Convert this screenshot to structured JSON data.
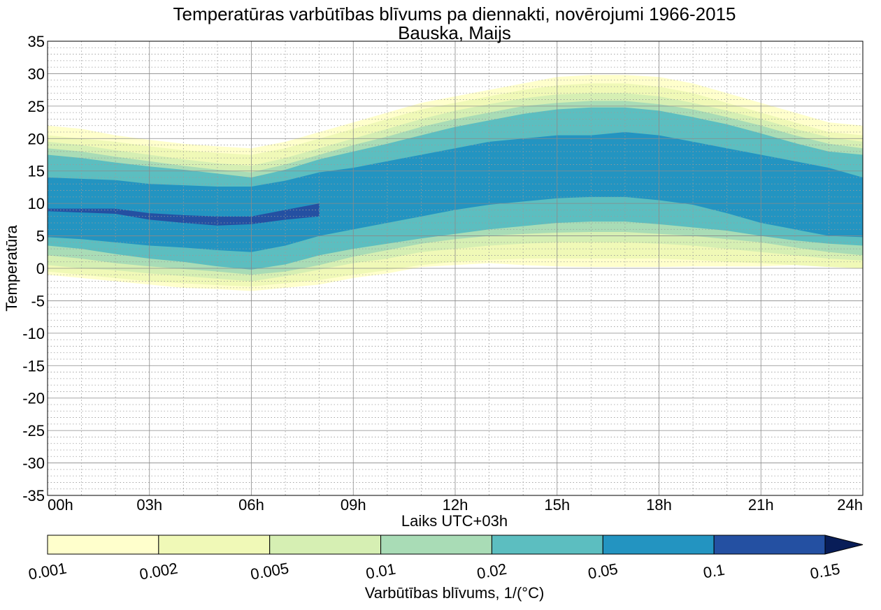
{
  "chart_data": {
    "type": "contourf",
    "title": "Temperatūras varbūtības blīvums pa diennakti, novērojumi 1966-2015",
    "subtitle": "Bauska, Maijs",
    "xlabel": "Laiks UTC+03h",
    "ylabel": "Temperatūra",
    "x_ticks": [
      "00h",
      "03h",
      "06h",
      "09h",
      "12h",
      "15h",
      "18h",
      "21h",
      "24h"
    ],
    "x_range": [
      0,
      24
    ],
    "y_ticks": [
      35,
      30,
      25,
      20,
      15,
      10,
      5,
      0,
      -5,
      -10,
      -15,
      -20,
      -25,
      -30,
      -35
    ],
    "y_range": [
      -35,
      35
    ],
    "grid": true,
    "colorbar": {
      "label": "Varbūtības blīvums, 1/(°C)",
      "levels": [
        "0.001",
        "0.002",
        "0.005",
        "0.01",
        "0.02",
        "0.05",
        "0.1",
        "0.15"
      ],
      "colors": [
        "#ffffcc",
        "#f0f9b7",
        "#d6efb3",
        "#a9dcb6",
        "#5cbec0",
        "#2394c1",
        "#2450a2",
        "#081d58"
      ],
      "extend": "max"
    },
    "bands_hours": [
      0,
      1,
      2,
      3,
      4,
      5,
      6,
      7,
      8,
      9,
      10,
      11,
      12,
      13,
      14,
      15,
      16,
      17,
      18,
      19,
      20,
      21,
      22,
      23,
      24
    ],
    "bands": [
      {
        "level": "0.001",
        "upper": [
          22,
          21.5,
          20.5,
          19.8,
          19.2,
          18.8,
          18.5,
          19.5,
          21,
          22.5,
          24,
          25.5,
          26.5,
          27.5,
          28.5,
          29.5,
          29.8,
          29.8,
          29.5,
          28.5,
          27,
          25.5,
          24,
          22.5,
          22
        ],
        "lower": [
          -1,
          -1.5,
          -2,
          -2.5,
          -3,
          -3.2,
          -3.5,
          -3,
          -2.5,
          -1.5,
          -0.8,
          0.2,
          0.5,
          0.8,
          0.5,
          0.3,
          0.2,
          0.2,
          0.2,
          0.3,
          0.3,
          0.3,
          0.5,
          0.5,
          0
        ]
      },
      {
        "level": "0.002",
        "upper": [
          20.5,
          20,
          19.5,
          18.8,
          18.2,
          17.8,
          17.5,
          18.5,
          20,
          21.5,
          23,
          24.5,
          25.5,
          26.5,
          27.5,
          28.2,
          28.5,
          28.5,
          28,
          27,
          25.5,
          24,
          22.5,
          21,
          20.5
        ],
        "lower": [
          -0.5,
          -1,
          -1.5,
          -2,
          -2.3,
          -2.6,
          -2.8,
          -2.3,
          -1.8,
          -1,
          -0.3,
          0.5,
          1,
          1.3,
          1.5,
          1.5,
          1.5,
          1.5,
          1.5,
          1.3,
          1,
          0.8,
          0.5,
          0.2,
          0
        ]
      },
      {
        "level": "0.005",
        "upper": [
          19.5,
          19,
          18.2,
          17.5,
          16.8,
          16.2,
          15.8,
          17,
          18.5,
          20,
          21.5,
          23,
          24.3,
          25.3,
          26.2,
          26.8,
          27,
          27,
          26.5,
          25.5,
          24.3,
          23,
          21.5,
          20.2,
          19.5
        ],
        "lower": [
          0.5,
          0,
          -0.3,
          -0.8,
          -1.2,
          -1.6,
          -2,
          -1.2,
          -0.2,
          0.8,
          1.5,
          2.5,
          3,
          3.5,
          3.8,
          4,
          4,
          4,
          3.8,
          3.5,
          3,
          2.5,
          2,
          1.5,
          1.2
        ]
      },
      {
        "level": "0.01",
        "upper": [
          18.5,
          18,
          17.2,
          16.5,
          15.8,
          15.2,
          14.8,
          16,
          17.5,
          19,
          20.3,
          21.8,
          23,
          24,
          25,
          25.5,
          25.8,
          25.8,
          25.3,
          24.5,
          23.3,
          22,
          20.5,
          19.2,
          18.5
        ],
        "lower": [
          2,
          1.5,
          0.8,
          0.3,
          -0.1,
          -0.5,
          -1,
          -0.5,
          0.5,
          1.8,
          2.8,
          3.8,
          4.5,
          5,
          5.3,
          5.5,
          5.6,
          5.6,
          5.3,
          5,
          4.5,
          4,
          3.2,
          2.5,
          2
        ]
      },
      {
        "level": "0.02",
        "upper": [
          17.5,
          17,
          16.3,
          15.7,
          15.2,
          14.6,
          14,
          15.2,
          16.8,
          18,
          19.2,
          20.5,
          21.8,
          22.8,
          23.8,
          24.5,
          24.8,
          24.8,
          24.3,
          23.3,
          22.2,
          20.8,
          19.3,
          18,
          17.5
        ],
        "lower": [
          3.5,
          3,
          2.2,
          1.5,
          1,
          0.3,
          -0.2,
          0.6,
          2,
          3,
          3.8,
          4.6,
          5.3,
          6,
          6.5,
          7,
          7.2,
          7.2,
          6.8,
          6.3,
          5.8,
          5,
          4.3,
          3.8,
          3.5
        ]
      },
      {
        "level": "0.05",
        "upper": [
          14,
          13.8,
          13.6,
          13,
          12.8,
          12.6,
          12.6,
          13.5,
          14.8,
          15.5,
          16.5,
          17.5,
          18.5,
          19.5,
          20,
          20.5,
          20.5,
          21,
          20.5,
          19.5,
          18.5,
          17.5,
          16.5,
          15.5,
          14
        ],
        "lower": [
          4.8,
          4.5,
          4,
          3.5,
          3.2,
          2.8,
          2.5,
          3.5,
          5,
          6,
          7,
          8,
          9,
          9.8,
          10.3,
          10.8,
          11,
          11,
          10.5,
          9.8,
          8.5,
          7,
          6,
          5,
          4.8
        ]
      },
      {
        "level": "0.1",
        "upper": [
          9.2,
          9.2,
          9.2,
          8.5,
          8.2,
          8,
          8,
          9,
          10
        ],
        "lower": [
          8.8,
          8.6,
          8.4,
          7.5,
          7,
          6.6,
          6.8,
          7.5,
          8
        ]
      }
    ]
  }
}
